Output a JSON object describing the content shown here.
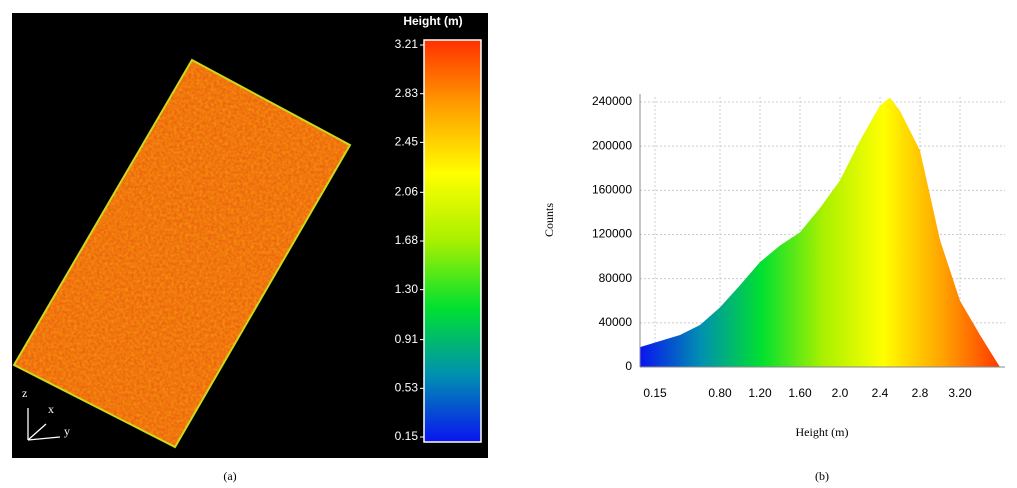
{
  "chart_data": [
    {
      "type": "colorbar",
      "title": "Height (m)",
      "caption": "(a)",
      "axis_labels": [
        "z",
        "x",
        "y"
      ],
      "ylim": [
        0.15,
        3.21
      ],
      "yticks": [
        0.15,
        0.53,
        0.91,
        {
          "value": 1.3,
          "label": "1.30"
        },
        1.68,
        2.06,
        2.45,
        2.83,
        3.21
      ],
      "colormap": [
        "#0a14f0",
        "#0090b0",
        "#00e030",
        "#a8f000",
        "#ffff00",
        "#ffa000",
        "#ff3000"
      ]
    },
    {
      "type": "area",
      "caption": "(b)",
      "xlabel": "Height (m)",
      "ylabel": "Counts",
      "x": [
        0.0,
        0.4,
        0.6,
        0.8,
        1.0,
        1.2,
        1.4,
        1.6,
        1.8,
        2.0,
        2.2,
        2.4,
        2.5,
        2.6,
        2.8,
        3.0,
        3.2,
        3.4,
        3.55,
        3.6
      ],
      "values": [
        18000,
        29000,
        38000,
        54000,
        74000,
        95000,
        110000,
        122000,
        144000,
        169000,
        205000,
        237000,
        244000,
        232000,
        196000,
        115000,
        60000,
        29000,
        7000,
        0
      ],
      "xlim": [
        0,
        3.65
      ],
      "xticks": [
        0.15,
        {
          "value": 0.8,
          "label": "0.80"
        },
        {
          "value": 1.2,
          "label": "1.20"
        },
        {
          "value": 1.6,
          "label": "1.60"
        },
        {
          "value": 2.0,
          "label": "2.0"
        },
        2.4,
        2.8,
        {
          "value": 3.2,
          "label": "3.20"
        }
      ],
      "ylim": [
        0,
        240000
      ],
      "yticks": [
        0,
        40000,
        80000,
        120000,
        160000,
        200000,
        240000
      ],
      "grid": true,
      "colormap": [
        "#0a14f0",
        "#0090b0",
        "#00e030",
        "#a8f000",
        "#ffff00",
        "#ffa000",
        "#ff3000"
      ]
    }
  ]
}
